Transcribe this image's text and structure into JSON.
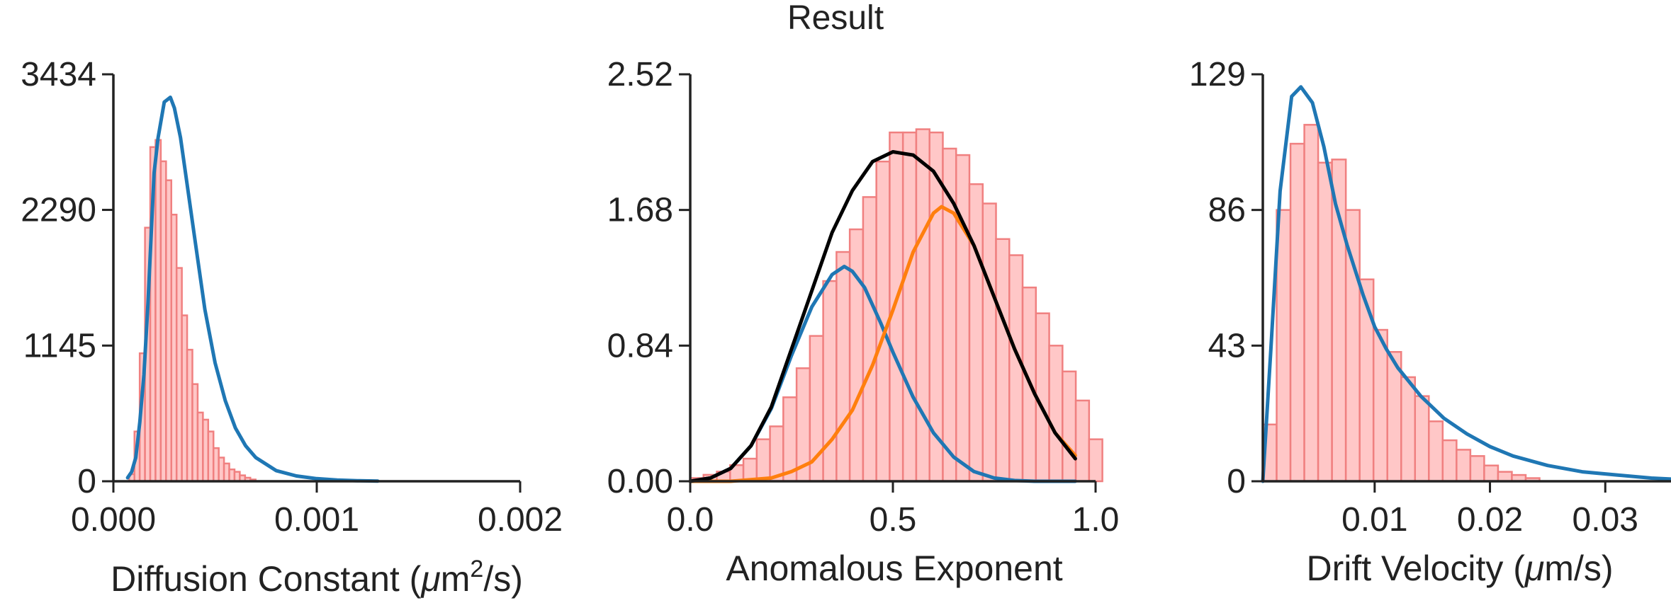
{
  "title": "Result",
  "colors": {
    "bar_fill": "#ffc7c7",
    "bar_edge": "#f08080",
    "blue": "#1f77b4",
    "orange": "#ff7f0e",
    "black": "#000000",
    "axis": "#222222"
  },
  "chart_data": [
    {
      "type": "bar",
      "subtype": "histogram-with-fit",
      "xlabel_main": "Diffusion Constant (",
      "xlabel_unit": "μ",
      "xlabel_sup_base": "m",
      "xlabel_sup": "2",
      "xlabel_tail": "/s)",
      "xlim": [
        0.0,
        0.002
      ],
      "ylim": [
        0,
        3434
      ],
      "xticks": [
        0.0,
        0.001,
        0.002
      ],
      "xtick_labels": [
        "0.000",
        "0.001",
        "0.002"
      ],
      "yticks": [
        0,
        1145,
        2290,
        3434
      ],
      "ytick_labels": [
        "0",
        "1145",
        "2290",
        "3434"
      ],
      "grid": false,
      "bins": {
        "start": 5.18e-05,
        "width": 2.59e-05,
        "counts": [
          0,
          60,
          420,
          1080,
          2140,
          2820,
          2880,
          2700,
          2540,
          2250,
          1800,
          1400,
          1110,
          820,
          580,
          520,
          420,
          280,
          200,
          150,
          100,
          80,
          50,
          30,
          15
        ]
      },
      "fit_curves": [
        {
          "color_key": "blue",
          "x": [
            7e-05,
            9e-05,
            0.00011,
            0.00013,
            0.00015,
            0.00017,
            0.0002,
            0.00022,
            0.00025,
            0.00028,
            0.0003,
            0.00033,
            0.00035,
            0.0004,
            0.00045,
            0.0005,
            0.00055,
            0.0006,
            0.00065,
            0.0007,
            0.0008,
            0.0009,
            0.001,
            0.0011,
            0.0012,
            0.0013
          ],
          "y": [
            30,
            80,
            200,
            500,
            900,
            1500,
            2600,
            2900,
            3200,
            3240,
            3150,
            2900,
            2660,
            2050,
            1450,
            1000,
            680,
            450,
            300,
            200,
            90,
            45,
            22,
            10,
            5,
            2
          ]
        }
      ]
    },
    {
      "type": "bar",
      "subtype": "histogram-with-fit",
      "xlabel": "Anomalous Exponent",
      "xlim": [
        0.0,
        1.0
      ],
      "ylim": [
        0.0,
        2.52
      ],
      "xticks": [
        0.0,
        0.5,
        1.0
      ],
      "xtick_labels": [
        "0.0",
        "0.5",
        "1.0"
      ],
      "yticks": [
        0.0,
        0.84,
        1.68,
        2.52
      ],
      "ytick_labels": [
        "0.00",
        "0.84",
        "1.68",
        "2.52"
      ],
      "grid": false,
      "bins": {
        "start": 0.0,
        "width": 0.0328,
        "counts": [
          0.02,
          0.04,
          0.06,
          0.1,
          0.14,
          0.26,
          0.34,
          0.52,
          0.7,
          0.9,
          1.24,
          1.42,
          1.56,
          1.76,
          1.98,
          2.16,
          2.16,
          2.18,
          2.16,
          2.06,
          2.02,
          1.84,
          1.72,
          1.5,
          1.4,
          1.2,
          1.04,
          0.84,
          0.68,
          0.5,
          0.26
        ]
      },
      "fit_curves": [
        {
          "color_key": "blue",
          "x": [
            0.0,
            0.05,
            0.1,
            0.15,
            0.2,
            0.25,
            0.3,
            0.35,
            0.38,
            0.4,
            0.43,
            0.47,
            0.5,
            0.55,
            0.6,
            0.65,
            0.7,
            0.75,
            0.8,
            0.85,
            0.9,
            0.95
          ],
          "y": [
            0.0,
            0.02,
            0.08,
            0.22,
            0.45,
            0.78,
            1.08,
            1.28,
            1.33,
            1.3,
            1.2,
            0.98,
            0.8,
            0.52,
            0.3,
            0.15,
            0.06,
            0.02,
            0.005,
            0.0,
            0.0,
            0.0
          ]
        },
        {
          "color_key": "orange",
          "x": [
            0.0,
            0.1,
            0.2,
            0.25,
            0.3,
            0.35,
            0.4,
            0.45,
            0.5,
            0.55,
            0.6,
            0.62,
            0.65,
            0.7,
            0.75,
            0.8,
            0.85,
            0.9,
            0.95
          ],
          "y": [
            0.0,
            0.0,
            0.02,
            0.06,
            0.12,
            0.26,
            0.44,
            0.72,
            1.06,
            1.42,
            1.66,
            1.7,
            1.66,
            1.46,
            1.14,
            0.82,
            0.54,
            0.3,
            0.16
          ]
        },
        {
          "color_key": "black",
          "x": [
            0.0,
            0.05,
            0.1,
            0.15,
            0.2,
            0.25,
            0.3,
            0.35,
            0.4,
            0.45,
            0.5,
            0.55,
            0.6,
            0.65,
            0.7,
            0.75,
            0.8,
            0.85,
            0.9,
            0.95
          ],
          "y": [
            0.0,
            0.02,
            0.08,
            0.22,
            0.46,
            0.82,
            1.18,
            1.54,
            1.8,
            1.98,
            2.04,
            2.02,
            1.92,
            1.72,
            1.46,
            1.14,
            0.82,
            0.54,
            0.3,
            0.14
          ]
        }
      ]
    },
    {
      "type": "bar",
      "subtype": "histogram-with-fit",
      "xlabel_main": "Drift Velocity (",
      "xlabel_unit": "μ",
      "xlabel_tail": "m/s)",
      "xlim": [
        0.0003,
        0.0357
      ],
      "ylim": [
        0,
        129
      ],
      "xticks": [
        0.01,
        0.02,
        0.03
      ],
      "xtick_labels": [
        "0.01",
        "0.02",
        "0.03"
      ],
      "yticks": [
        0,
        43,
        86,
        129
      ],
      "ytick_labels": [
        "0",
        "43",
        "86",
        "129"
      ],
      "grid": false,
      "bins": {
        "start": 0.0003,
        "width": 0.0012,
        "counts": [
          18,
          86,
          107,
          113,
          101,
          102,
          86,
          64,
          48,
          41,
          33,
          27,
          19,
          13,
          10,
          8,
          5,
          3,
          2,
          1
        ]
      },
      "fit_curves": [
        {
          "color_key": "blue",
          "x": [
            0.0003,
            0.001,
            0.0018,
            0.0028,
            0.0036,
            0.0046,
            0.0056,
            0.0066,
            0.0076,
            0.009,
            0.01,
            0.011,
            0.012,
            0.014,
            0.016,
            0.018,
            0.02,
            0.022,
            0.025,
            0.028,
            0.031,
            0.034,
            0.0357
          ],
          "y": [
            0,
            42,
            92,
            122,
            125,
            120,
            106,
            88,
            75,
            59,
            49,
            42,
            36,
            27,
            20,
            15,
            11,
            8,
            5,
            3,
            2,
            1,
            0.7
          ]
        }
      ]
    }
  ]
}
